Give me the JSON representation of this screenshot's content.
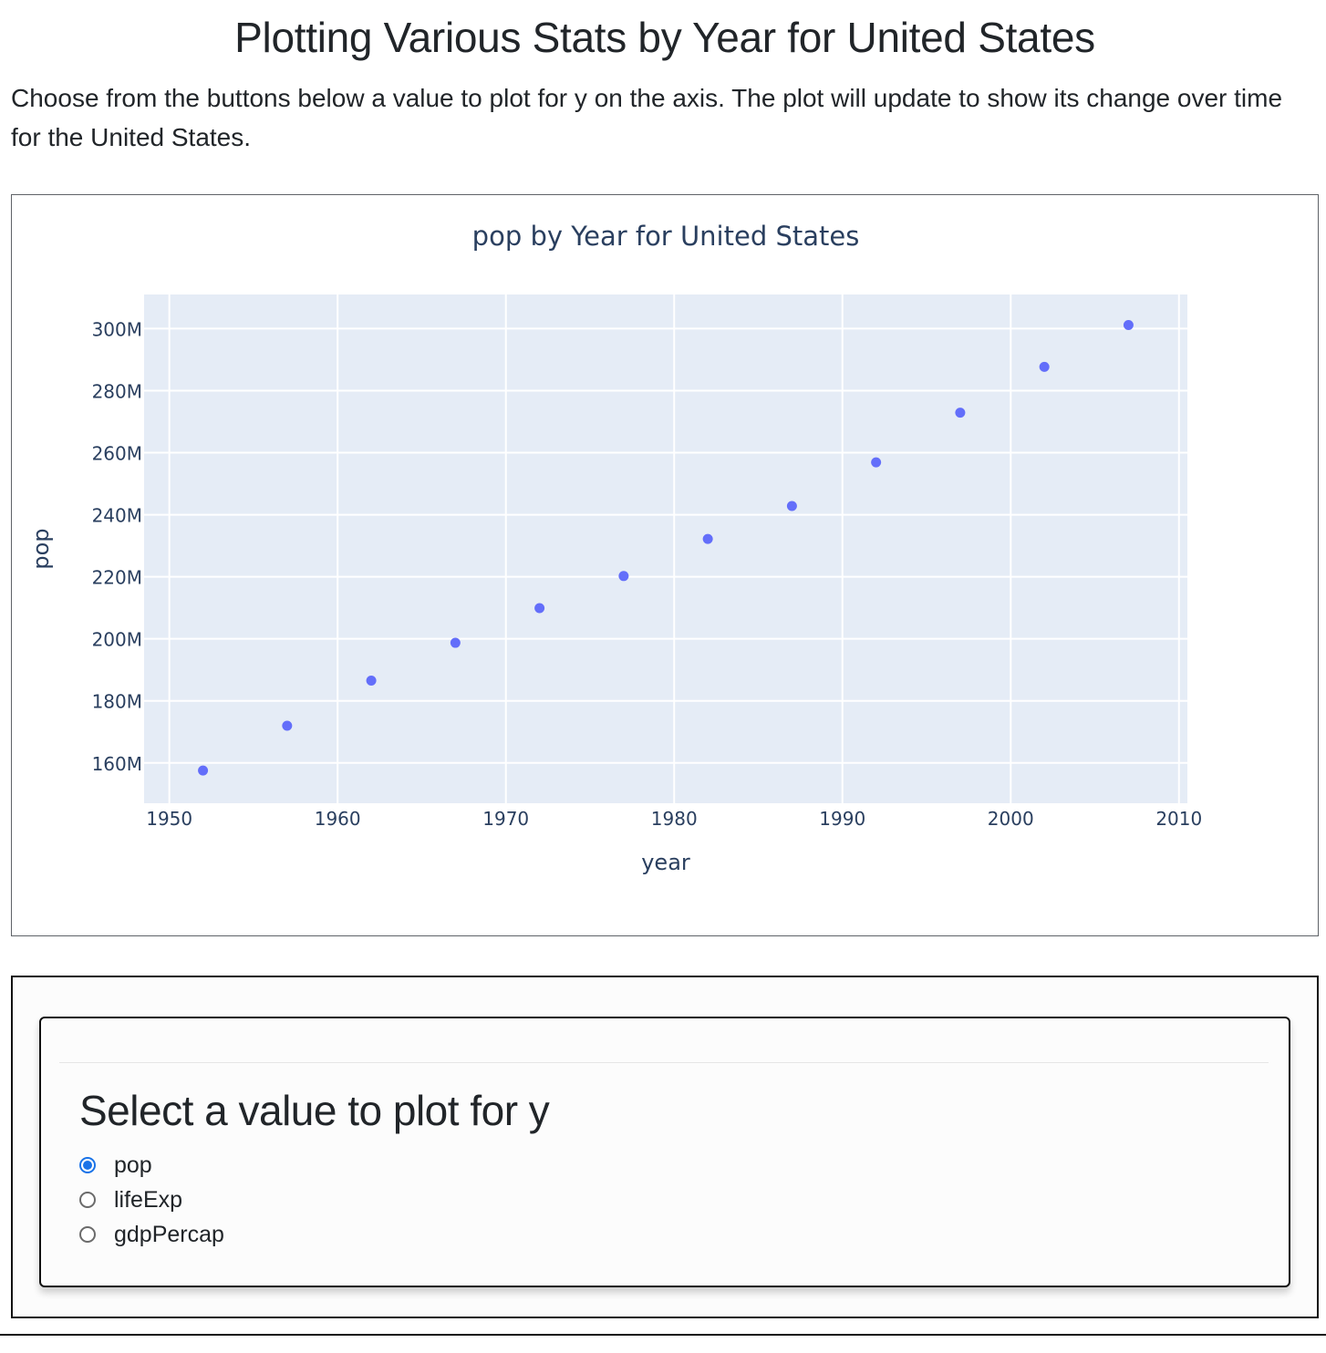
{
  "header": {
    "title": "Plotting Various Stats by Year for United States",
    "description": "Choose from the buttons below a value to plot for y on the axis. The plot will update to show its change over time for the United States."
  },
  "chart_data": {
    "type": "scatter",
    "title": "pop by Year for United States",
    "xlabel": "year",
    "ylabel": "pop",
    "x": [
      1952,
      1957,
      1962,
      1967,
      1972,
      1977,
      1982,
      1987,
      1992,
      1997,
      2002,
      2007
    ],
    "y": [
      157553000,
      171984000,
      186538000,
      198712000,
      209896000,
      220239000,
      232187835,
      242803533,
      256894189,
      272911760,
      287675526,
      301139947
    ],
    "xlim": [
      1948.5,
      2010.5
    ],
    "ylim": [
      147000000,
      311000000
    ],
    "x_ticks": [
      {
        "value": 1950,
        "label": "1950"
      },
      {
        "value": 1960,
        "label": "1960"
      },
      {
        "value": 1970,
        "label": "1970"
      },
      {
        "value": 1980,
        "label": "1980"
      },
      {
        "value": 1990,
        "label": "1990"
      },
      {
        "value": 2000,
        "label": "2000"
      },
      {
        "value": 2010,
        "label": "2010"
      }
    ],
    "y_ticks": [
      {
        "value": 160000000,
        "label": "160M"
      },
      {
        "value": 180000000,
        "label": "180M"
      },
      {
        "value": 200000000,
        "label": "200M"
      },
      {
        "value": 220000000,
        "label": "220M"
      },
      {
        "value": 240000000,
        "label": "240M"
      },
      {
        "value": 260000000,
        "label": "260M"
      },
      {
        "value": 280000000,
        "label": "280M"
      },
      {
        "value": 300000000,
        "label": "300M"
      }
    ],
    "grid": true,
    "legend": "none",
    "colors": {
      "marker": "#636efa",
      "plot_bg": "#e5ecf6",
      "grid": "#ffffff",
      "text": "#2a3f5f"
    }
  },
  "controls": {
    "heading": "Select a value to plot for y",
    "selected": "pop",
    "options": [
      {
        "label": "pop",
        "value": "pop"
      },
      {
        "label": "lifeExp",
        "value": "lifeExp"
      },
      {
        "label": "gdpPercap",
        "value": "gdpPercap"
      }
    ],
    "accent_color": "#1a73e8"
  }
}
